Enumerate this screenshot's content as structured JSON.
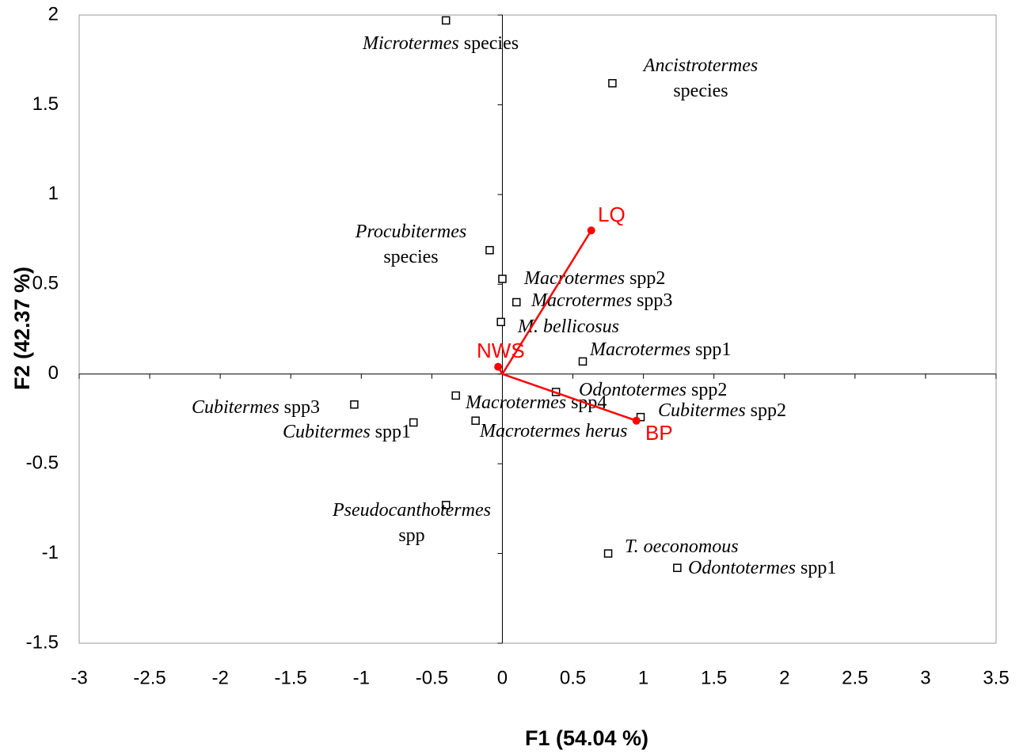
{
  "chart_data": {
    "type": "biplot",
    "x_label": "F1 (54.04 %)",
    "y_label": "F2 (42.37 %)",
    "xlim": [
      -3,
      3.5
    ],
    "ylim": [
      -1.5,
      2
    ],
    "xticks": [
      -3,
      -2.5,
      -2,
      -1.5,
      -1,
      -0.5,
      0,
      0.5,
      1,
      1.5,
      2,
      2.5,
      3,
      3.5
    ],
    "yticks": [
      -1.5,
      -1,
      -0.5,
      0,
      0.5,
      1,
      1.5,
      2
    ],
    "marker_color": "#000000",
    "vector_color": "#ff0000",
    "points": [
      {
        "x": -0.4,
        "y": 1.97,
        "label_italic": "Microtermes",
        "label_plain": "species"
      },
      {
        "x": 0.78,
        "y": 1.62,
        "label_italic": "Ancistrotermes",
        "label_line2": "species"
      },
      {
        "x": -0.09,
        "y": 0.69,
        "label_italic": "Procubitermes",
        "label_line2": "species"
      },
      {
        "x": 0.0,
        "y": 0.53,
        "label_italic": "Macrotermes",
        "label_plain": "spp2"
      },
      {
        "x": 0.1,
        "y": 0.4,
        "label_italic": "Macrotermes",
        "label_plain": "spp3"
      },
      {
        "x": -0.01,
        "y": 0.29,
        "label_italic": "M. bellicosus"
      },
      {
        "x": 0.57,
        "y": 0.07,
        "label_italic": "Macrotermes",
        "label_plain": "spp1"
      },
      {
        "x": 0.38,
        "y": -0.1,
        "label_italic": "Odontotermes",
        "label_plain": "spp2"
      },
      {
        "x": 0.98,
        "y": -0.24,
        "label_italic": "Cubitermes",
        "label_plain": "spp2"
      },
      {
        "x": -0.33,
        "y": -0.12,
        "label_italic": "Macrotermes",
        "label_plain": "spp4"
      },
      {
        "x": -0.19,
        "y": -0.26,
        "label_italic": "Macrotermes herus"
      },
      {
        "x": -1.05,
        "y": -0.17,
        "label_italic": "Cubitermes",
        "label_plain": "spp3"
      },
      {
        "x": -0.63,
        "y": -0.27,
        "label_italic": "Cubitermes",
        "label_plain": "spp1"
      },
      {
        "x": -0.4,
        "y": -0.73,
        "label_italic": "Pseudocanthotermes",
        "label_line2": "spp"
      },
      {
        "x": 0.75,
        "y": -1.0,
        "label_italic": "T. oeconomous"
      },
      {
        "x": 1.24,
        "y": -1.08,
        "label_italic": "Odontotermes",
        "label_plain": "spp1"
      }
    ],
    "vectors": [
      {
        "name": "LQ",
        "x": 0.63,
        "y": 0.8
      },
      {
        "name": "BP",
        "x": 0.95,
        "y": -0.26
      },
      {
        "name": "NWS",
        "x": -0.03,
        "y": 0.04
      }
    ]
  }
}
